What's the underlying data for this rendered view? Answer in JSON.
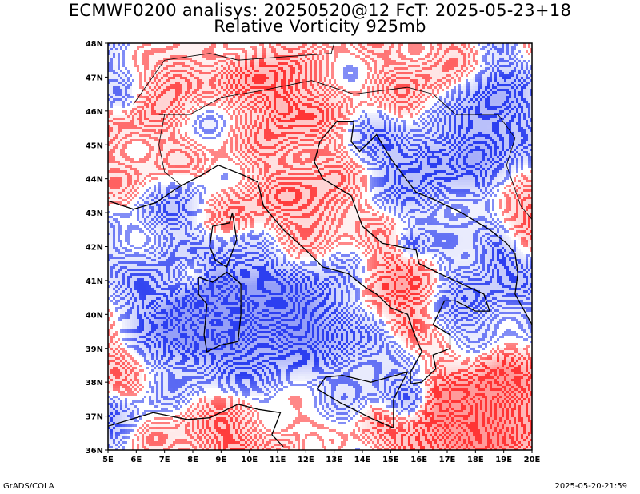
{
  "title_line1": "ECMWF0200 analisys: 20250520@12 FcT: 2025-05-23+18",
  "title_line2": "Relative Vorticity 925mb",
  "footer_left": "GrADS/COLA",
  "footer_right": "2025-05-20-21:59",
  "colors": {
    "positive": "#ff3535",
    "negative": "#2c3ff0",
    "coast": "#000000",
    "frame": "#000000"
  },
  "map": {
    "lon_range": [
      5,
      20
    ],
    "lat_range": [
      36,
      48
    ],
    "lon_ticks": [
      "5E",
      "6E",
      "7E",
      "8E",
      "9E",
      "10E",
      "11E",
      "12E",
      "13E",
      "14E",
      "15E",
      "16E",
      "17E",
      "18E",
      "19E",
      "20E"
    ],
    "lat_ticks": [
      "36N",
      "37N",
      "38N",
      "39N",
      "40N",
      "41N",
      "42N",
      "43N",
      "44N",
      "45N",
      "46N",
      "47N",
      "48N"
    ]
  }
}
